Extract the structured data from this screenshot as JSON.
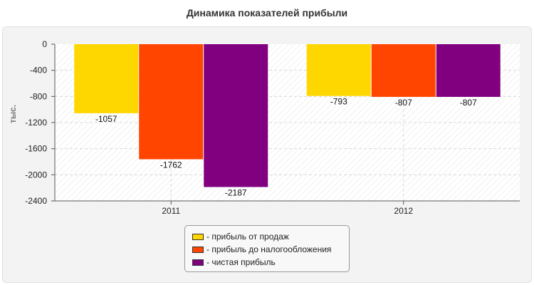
{
  "chart_data": {
    "type": "bar",
    "title": "Динамика показателей прибыли",
    "xlabel": "",
    "ylabel": "тыс.",
    "categories": [
      "2011",
      "2012"
    ],
    "series": [
      {
        "name": "прибыль от продаж",
        "color": "#FFD700",
        "values": [
          -1057,
          -793
        ]
      },
      {
        "name": "прибыль до налогообложения",
        "color": "#FF4500",
        "values": [
          -1762,
          -807
        ]
      },
      {
        "name": "чистая прибыль",
        "color": "#800080",
        "values": [
          -2187,
          -807
        ]
      }
    ],
    "ylim": [
      -2400,
      0
    ],
    "yticks": [
      0,
      -400,
      -800,
      -1200,
      -1600,
      -2000,
      -2400
    ],
    "grid": true,
    "legend_position": "bottom-center"
  }
}
